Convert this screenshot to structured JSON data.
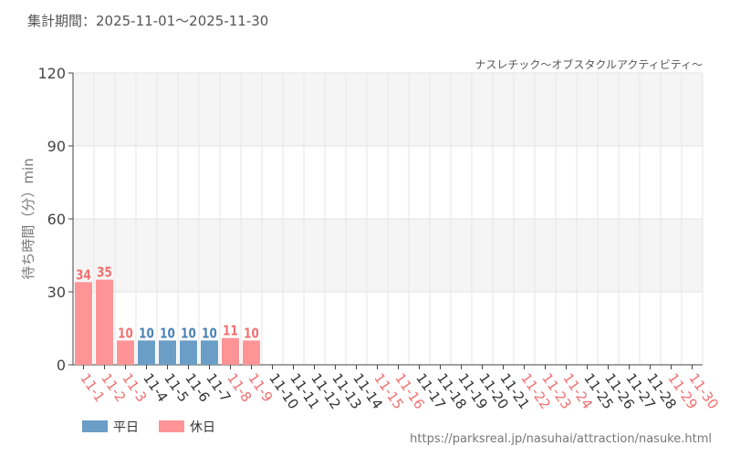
{
  "header": {
    "period": "集計期間：2025-11-01～2025-11-30",
    "attraction": "ナスレチック～オブスタクルアクティビティ～"
  },
  "footer": {
    "url": "https://parksreal.jp/nasuhai/attraction/nasuke.html"
  },
  "chart_data": {
    "type": "bar",
    "title": "ナスレチック～オブスタクルアクティビティ～",
    "ylabel": "待ち時間（分）min",
    "xlabel": "",
    "ylim": [
      0,
      120
    ],
    "yticks": [
      0,
      30,
      60,
      90,
      120
    ],
    "grid": true,
    "legend_position": "bottom-left",
    "legend": [
      {
        "name": "平日",
        "color": "#6a9ec6"
      },
      {
        "name": "休日",
        "color": "#ff9496"
      }
    ],
    "colors": {
      "weekday": "#6a9ec6",
      "holiday": "#ff9496",
      "weekday_label": "#4a82b4",
      "holiday_label": "#f07070"
    },
    "categories": [
      "11-1",
      "11-2",
      "11-3",
      "11-4",
      "11-5",
      "11-6",
      "11-7",
      "11-8",
      "11-9",
      "11-10",
      "11-11",
      "11-12",
      "11-13",
      "11-14",
      "11-15",
      "11-16",
      "11-17",
      "11-18",
      "11-19",
      "11-20",
      "11-21",
      "11-22",
      "11-23",
      "11-24",
      "11-25",
      "11-26",
      "11-27",
      "11-28",
      "11-29",
      "11-30"
    ],
    "holiday": [
      true,
      true,
      true,
      false,
      false,
      false,
      false,
      true,
      true,
      false,
      false,
      false,
      false,
      false,
      true,
      true,
      false,
      false,
      false,
      false,
      false,
      true,
      true,
      true,
      false,
      false,
      false,
      false,
      true,
      true
    ],
    "values": [
      34,
      35,
      10,
      10,
      10,
      10,
      10,
      11,
      10,
      null,
      null,
      null,
      null,
      null,
      null,
      null,
      null,
      null,
      null,
      null,
      null,
      null,
      null,
      null,
      null,
      null,
      null,
      null,
      null,
      null
    ]
  }
}
